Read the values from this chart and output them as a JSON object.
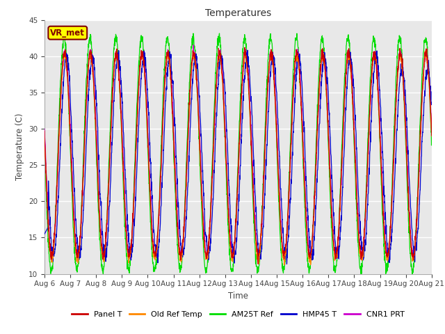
{
  "title": "Temperatures",
  "xlabel": "Time",
  "ylabel": "Temperature (C)",
  "ylim": [
    10,
    45
  ],
  "xlim": [
    0,
    15
  ],
  "x_tick_labels": [
    "Aug 6",
    "Aug 7",
    "Aug 8",
    "Aug 9",
    "Aug 10",
    "Aug 11",
    "Aug 12",
    "Aug 13",
    "Aug 14",
    "Aug 15",
    "Aug 16",
    "Aug 17",
    "Aug 18",
    "Aug 19",
    "Aug 20",
    "Aug 21"
  ],
  "y_ticks": [
    10,
    15,
    20,
    25,
    30,
    35,
    40,
    45
  ],
  "series_colors": [
    "#cc0000",
    "#ff8800",
    "#00dd00",
    "#0000cc",
    "#cc00cc"
  ],
  "series_labels": [
    "Panel T",
    "Old Ref Temp",
    "AM25T Ref",
    "HMP45 T",
    "CNR1 PRT"
  ],
  "annotation_text": "VR_met",
  "annotation_box_color": "#ffff00",
  "annotation_text_color": "#800000",
  "background_color": "#e8e8e8",
  "grid_color": "#ffffff",
  "base_min": 12.0,
  "base_max": 41.0
}
